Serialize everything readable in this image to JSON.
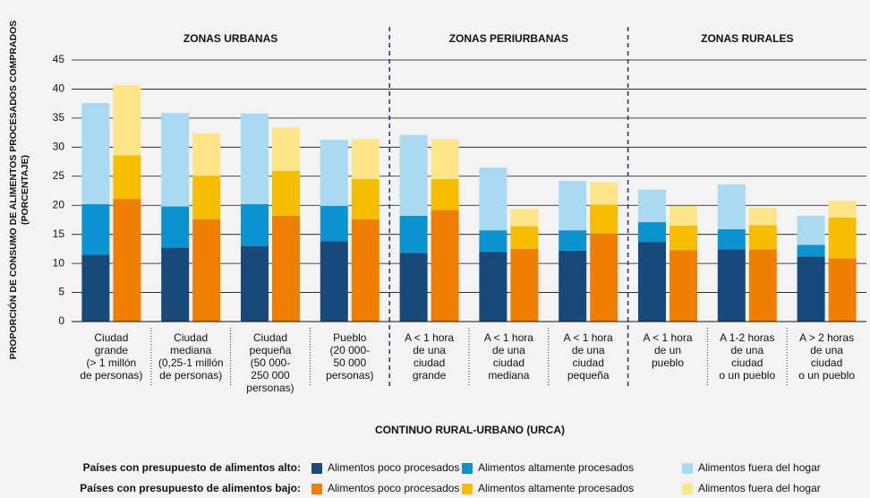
{
  "chart_data": {
    "type": "bar",
    "stacked": true,
    "y_label": "PROPORCIÓN DE CONSUMO DE ALIMENTOS PROCESADOS COMPRADOS\n(PORCENTAJE)",
    "x_label": "CONTINUO RURAL-URBANO (URCA)",
    "zones": [
      "ZONAS URBANAS",
      "ZONAS PERIURBANAS",
      "ZONAS RURALES"
    ],
    "categories": [
      "Ciudad\ngrande\n(> 1 millón\nde personas)",
      "Ciudad\nmediana\n(0,25-1 millón\nde personas)",
      "Ciudad\npequeña\n(50 000-\n250 000\npersonas)",
      "Pueblo\n(20 000-\n50 000\npersonas)",
      "A < 1 hora\nde una\nciudad\ngrande",
      "A < 1 hora\nde una\nciudad\nmediana",
      "A < 1 hora\nde una\nciudad\npequeña",
      "A < 1 hora\nde un\npueblo",
      "A 1-2 horas\nde una\nciudad\no un pueblo",
      "A > 2 horas\nde una\nciudad\no un pueblo"
    ],
    "groups": [
      {
        "label": "Países con presupuesto de alimentos alto:",
        "series": [
          {
            "name": "Alimentos poco procesados",
            "color": "#17497a",
            "values": [
              11.5,
              12.7,
              13.0,
              13.8,
              11.8,
              12.0,
              12.2,
              13.7,
              12.4,
              11.2
            ]
          },
          {
            "name": "Alimentos altamente procesados",
            "color": "#0a93cf",
            "values": [
              8.7,
              7.1,
              7.2,
              6.1,
              6.4,
              3.7,
              3.5,
              3.4,
              3.5,
              2.0
            ]
          },
          {
            "name": "Alimentos fuera del hogar",
            "color": "#aadaf2",
            "values": [
              17.4,
              16.1,
              15.6,
              11.4,
              13.9,
              10.8,
              8.5,
              5.6,
              7.7,
              5.0
            ]
          }
        ]
      },
      {
        "label": "Países con presupuesto de alimentos bajo:",
        "series": [
          {
            "name": "Alimentos poco procesados",
            "color": "#ee7f00",
            "values": [
              21.1,
              17.6,
              18.2,
              17.6,
              19.2,
              12.5,
              15.2,
              12.3,
              12.4,
              10.9
            ]
          },
          {
            "name": "Alimentos altamente procesados",
            "color": "#f7bd00",
            "values": [
              7.5,
              7.5,
              7.7,
              6.9,
              5.3,
              3.9,
              4.9,
              4.2,
              4.2,
              7.0
            ]
          },
          {
            "name": "Alimentos fuera del hogar",
            "color": "#fde58a",
            "values": [
              12.1,
              7.3,
              7.5,
              6.9,
              6.9,
              3.0,
              3.9,
              3.4,
              3.0,
              2.9
            ]
          }
        ]
      }
    ],
    "ylim": [
      0,
      45
    ],
    "yticks": [
      0,
      5,
      10,
      15,
      20,
      25,
      30,
      35,
      40,
      45
    ],
    "grid": true
  }
}
